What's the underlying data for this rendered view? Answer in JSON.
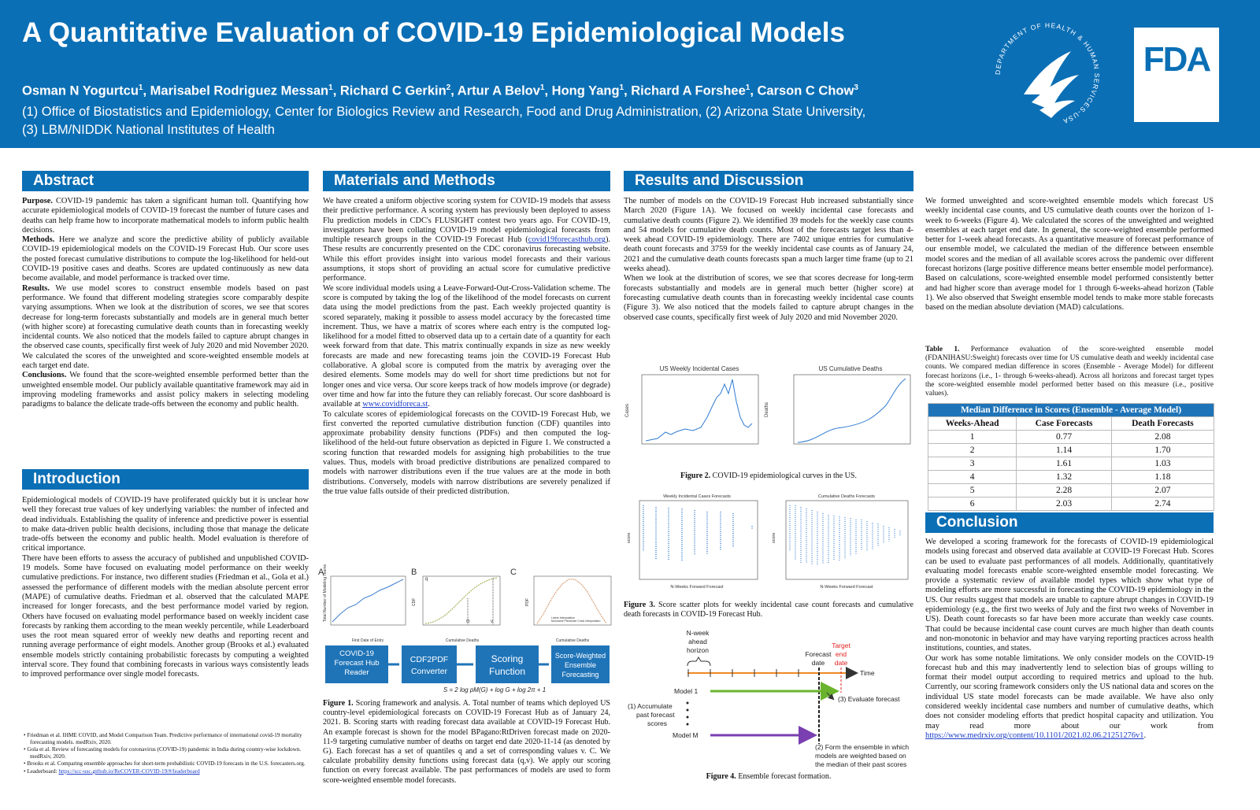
{
  "header": {
    "title": "A Quantitative Evaluation of COVID-19 Epidemiological Models",
    "authors": [
      {
        "name": "Osman N Yogurtcu",
        "sup": "1"
      },
      {
        "name": "Marisabel Rodriguez Messan",
        "sup": "1"
      },
      {
        "name": "Richard C Gerkin",
        "sup": "2"
      },
      {
        "name": "Artur A Belov",
        "sup": "1"
      },
      {
        "name": "Hong Yang",
        "sup": "1"
      },
      {
        "name": "Richard A Forshee",
        "sup": "1"
      },
      {
        "name": "Carson C Chow",
        "sup": "3"
      }
    ],
    "affiliations": [
      "(1) Office of Biostatistics and Epidemiology, Center for Biologics Review and Research, Food and Drug Administration, (2) Arizona State University,",
      "(3) LBM/NIDDK National Institutes of Health"
    ],
    "hhs_seal": "DEPARTMENT OF HEALTH & HUMAN SERVICES-USA",
    "fda": "FDA"
  },
  "abstract": {
    "heading": "Abstract",
    "paragraphs": [
      {
        "lead": "Purpose.",
        "text": "COVID-19 pandemic has taken a significant human toll. Quantifying how accurate epidemiological models of COVID-19 forecast the number of future cases and deaths can help frame how to incorporate mathematical models to inform public health decisions."
      },
      {
        "lead": "Methods.",
        "text": "Here we analyze and score the predictive ability of publicly available COVID-19 epidemiological models on the COVID-19 Forecast Hub. Our score uses the posted forecast cumulative distributions to compute the log-likelihood for held-out COVID-19 positive cases and deaths. Scores are updated continuously as new data become available, and model performance is tracked over time."
      },
      {
        "lead": "Results.",
        "text": "We use model scores to construct ensemble models based on past performance. We found that different modeling strategies score comparably despite varying assumptions. When we look at the distribution of scores, we see that scores decrease for long-term forecasts substantially and models are in general much better (with higher score) at forecasting cumulative death counts than in forecasting weekly incidental counts. We also noticed that the models failed to capture abrupt changes in the observed case counts, specifically first week of July 2020 and mid November 2020. We calculated the scores of the unweighted and score-weighted ensemble models at each target end date."
      },
      {
        "lead": "Conclusions.",
        "text": "We found that the score-weighted ensemble performed better than the unweighted ensemble model. Our publicly available quantitative framework may aid in improving modeling frameworks and assist policy makers in selecting modeling paradigms to balance the delicate trade-offs between the economy and public health."
      }
    ]
  },
  "introduction": {
    "heading": "Introduction",
    "paragraphs": [
      "Epidemiological models of COVID-19 have proliferated quickly but it is unclear how well they forecast true values of key underlying variables: the number of infected and dead individuals. Establishing the quality of inference and predictive power is essential to make data-driven public health decisions, including those that manage the delicate trade-offs between the economy and public health. Model evaluation is therefore of critical importance.",
      "There have been efforts to assess the accuracy of published and unpublished COVID-19 models. Some have focused on evaluating model performance on their weekly cumulative predictions. For instance, two different studies (Friedman et al., Gola et al.) assessed the performance of different models with the median absolute percent error (MAPE) of cumulative deaths. Friedman et al. observed that the calculated MAPE increased for longer forecasts, and the best performance model varied by region. Others have focused on evaluating model performance based on weekly incident case forecasts by ranking them according to the mean weekly percentile, while Leaderboard uses the root mean squared error of weekly new deaths and reporting recent and running average performance of eight models. Another group (Brooks et al.) evaluated ensemble models strictly containing probabilistic forecasts by computing a weighted interval score. They found that combining forecasts in various ways consistently leads to improved performance over single model forecasts."
    ],
    "references": [
      "Friedman et al. IHME COVID, and Model Comparison Team. Predictive performance of international covid-19 mortality forecasting models. medRxiv, 2020.",
      "Gola et al. Review of forecasting models for coronavirus (COVID-19) pandemic in India during country-wise lockdown. medRxiv, 2020.",
      "Brooks et al. Comparing ensemble approaches for short-term probabilistic COVID-19 forecasts in the U.S. forecasters.org."
    ],
    "leaderboard": {
      "label": "Leaderboard:",
      "link": "https://scc-usc.github.io/ReCOVER-COVID-19/#/leaderboard"
    }
  },
  "methods": {
    "heading": "Materials and Methods",
    "p1": {
      "text": "We have created a uniform objective scoring system for COVID-19 models that assess their predictive performance. A scoring system has previously been deployed to assess Flu prediction models in CDC's FLUSIGHT contest two years ago. For COVID-19, investigators have been collating COVID-19 model epidemiological forecasts from multiple research groups in the COVID-19 Forecast Hub (",
      "link": "covid19forecasthub.org",
      "after": "). These results are concurrently presented on the CDC coronavirus forecasting website. While this effort provides insight into various model forecasts and their various assumptions, it stops short of providing an actual score for cumulative predictive performance."
    },
    "p2": {
      "text": "We score individual models using a Leave-Forward-Out-Cross-Validation scheme. The score is computed by taking the log of the likelihood of the model forecasts on current data using the model predictions from the past. Each weekly projected quantity is scored separately, making it possible to assess model accuracy by the forecasted time increment. Thus, we have a matrix of scores where each entry is the computed log-likelihood for a model fitted to observed data up to a certain date of a quantity for each week forward from that date. This matrix continually expands in size as new weekly forecasts are made and new forecasting teams join the COVID-19 Forecast Hub collaborative. A global score is computed from the matrix by averaging over the desired elements. Some models may do well for short time predictions but not for longer ones and vice versa. Our score keeps track of how models improve (or degrade) over time and how far into the future they can reliably forecast. Our score dashboard is available at",
      "link": "www.covidforeca.st",
      "after": "."
    },
    "p3": "To calculate scores of epidemiological forecasts on the COVID-19 Forecast Hub, we first converted the reported cumulative distribution function (CDF) quantiles into approximate probability density functions (PDFs) and then computed the log-likelihood of the held-out future observation as depicted in Figure 1. We constructed a scoring function that rewarded models for assigning high probabilities to the true values. Thus, models with broad predictive distributions are penalized compared to models with narrower distributions even if the true values are at the mode in both distributions. Conversely, models with narrow distributions are severely penalized if the true value falls outside of their predicted distribution."
  },
  "figure1": {
    "panels": [
      "A",
      "B",
      "C"
    ],
    "a_ylabel": "Total Number of Modeling Teams",
    "a_xlabel": "First Date of Entry",
    "b_ylabel": "CDF",
    "b_xlabel": "Cumulative Deaths",
    "b_marks": [
      "q",
      "G",
      "v"
    ],
    "c_ylabel": "PDF",
    "c_xlabel": "Cumulative Deaths",
    "c_legend": [
      "Linear Interpolation",
      "Monotone Piecewise Cubic Interpolation"
    ],
    "boxes": [
      [
        "COVID-19",
        "Forecast Hub",
        "Reader"
      ],
      [
        "CDF2PDF",
        "Converter"
      ],
      [
        "Scoring",
        "Function"
      ],
      [
        "Score-Weighted",
        "Ensemble",
        "Forecasting"
      ]
    ],
    "formula": "S = 2 log pM(G) + log G + log 2π + 1",
    "caption_lead": "Figure 1.",
    "caption": "Scoring framework and analysis. A. Total number of teams which deployed US country-level epidemiological forecasts on COVID-19 Forecast Hub as of January 24, 2021. B. Scoring starts with reading forecast data available at COVID-19 Forecast Hub. An example forecast is shown for the model BPagano:RtDriven forecast made on 2020-11-9 targeting cumulative number of deaths on target end date 2020-11-14 (as denoted by G). Each forecast has a set of quantiles q and a set of corresponding values v. C. We calculate probability density functions using forecast data (q,v). We apply our scoring function on every forecast available. The past performances of models are used to form score-weighted ensemble model forecasts."
  },
  "results": {
    "heading": "Results and Discussion",
    "paragraphs": [
      "The number of  models on the COVID-19 Forecast Hub increased substantially since March 2020 (Figure 1A). We focused on weekly incidental case forecasts and cumulative death counts (Figure 2). We identified 39 models for the weekly case counts and 54 models for cumulative death counts. Most of the forecasts target less than 4-week ahead COVID-19 epidemiology. There are 7402 unique entries for cumulative death count forecasts and 3759 for the weekly incidental case counts as of January 24, 2021 and the cumulative death counts forecasts span a much larger time frame (up to 21 weeks ahead).",
      "When we look at the distribution of scores, we see that scores decrease for long-term forecasts substantially and models are in general much better (higher score) at forecasting cumulative death counts than in forecasting weekly incidental case counts (Figure 3). We also noticed that the models failed to capture abrupt changes in the observed case counts, specifically first week of July 2020 and mid November 2020.",
      "We formed unweighted and score-weighted ensemble models which forecast US weekly incidental case counts, and US cumulative death counts over the horizon of 1-week to 6-weeks (Figure 4). We calculated the scores of the unweighted and weighted ensembles at each target end date. In general, the score-weighted ensemble performed better for 1-week ahead forecasts. As a quantitative measure of forecast performance of our ensemble model, we calculated the median of the difference between ensemble model scores and the median of all available scores across the pandemic over different forecast horizons (large positive difference means better ensemble model performance). Based on calculations, score-weighted ensemble model performed consistently better and had higher score than average model for 1 through 6-weeks-ahead horizon (Table 1). We also observed that Sweight ensemble model tends to make more stable forecasts based on the median absolute deviation (MAD) calculations."
    ],
    "figure2": {
      "titles": [
        "US Weekly Incidental Cases",
        "US Cumulative Deaths"
      ],
      "ylabels": [
        "Cases",
        "Deaths"
      ],
      "caption_lead": "Figure 2.",
      "caption": "COVID-19 epidemiological curves in the US."
    },
    "figure3": {
      "titles": [
        "Weekly Incidental Cases Forecasts",
        "Cumulative Deaths Forecasts"
      ],
      "xlabel": "N-Weeks Forward Forecast",
      "ylabel": "score",
      "caption_lead": "Figure 3.",
      "caption": "Score scatter plots for weekly incidental case count forecasts and cumulative death forecasts in COVID-19 Forecast Hub."
    },
    "figure4": {
      "horizon": [
        "N-week",
        "ahead",
        "horizon"
      ],
      "forecast_date": [
        "Forecast",
        "date"
      ],
      "target": [
        "Target",
        "end",
        "date"
      ],
      "time": "Time",
      "model1": "Model 1",
      "modelm": "Model M",
      "step1": [
        "(1) Accumulate",
        "past forecast",
        "scores"
      ],
      "step3": "(3) Evaluate forecast",
      "step2": [
        "(2) Form the ensemble in which",
        "models are weighted based on",
        "the median of their past scores"
      ],
      "caption_lead": "Figure 4.",
      "caption": "Ensemble forecast formation."
    },
    "table": {
      "caption_lead": "Table 1.",
      "caption": "Performance evaluation of the score-weighted ensemble model (FDANIHASU:Sweight) forecasts over time for US cumulative death and weekly incidental case counts. We compared median difference in scores (Ensemble - Average Model) for different forecast horizons (i.e., 1- through 6-weeks-ahead). Across all horizons and forecast target types the score-weighted ensemble model performed better based on this measure (i.e., positive values).",
      "title": "Median Difference in Scores (Ensemble - Average Model)",
      "columns": [
        "Weeks-Ahead",
        "Case Forecasts",
        "Death Forecasts"
      ],
      "rows": [
        [
          "1",
          "0.77",
          "2.08"
        ],
        [
          "2",
          "1.14",
          "1.70"
        ],
        [
          "3",
          "1.61",
          "1.03"
        ],
        [
          "4",
          "1.32",
          "1.18"
        ],
        [
          "5",
          "2.28",
          "2.07"
        ],
        [
          "6",
          "2.03",
          "2.74"
        ]
      ]
    }
  },
  "conclusion": {
    "heading": "Conclusion",
    "p1": "We developed a scoring framework for the forecasts of COVID-19 epidemiological models using forecast and observed data available at COVID-19 Forecast Hub. Scores can be used to evaluate past performances of all models. Additionally, quantitatively evaluating model forecasts enable score-weighted ensemble model forecasting. We provide a systematic review of available model types which show what type of modeling efforts are more successful in forecasting the COVID-19 epidemiology in the US. Our results suggest that models are unable to capture abrupt changes in COVID-19 epidemiology (e.g., the first two weeks of July and the first two weeks of November in US). Death count forecasts so far have been more accurate than weekly case counts. That could be because incidental case count curves are much higher than death counts and non-monotonic in behavior and may have varying reporting practices across health institutions, counties, and states.",
    "p2": {
      "text": "Our work has some notable limitations. We only consider models on the COVID-19 forecast hub and this may inadvertently lend to selection bias of groups willing to format their model output according to required metrics and upload to the hub. Currently, our scoring framework considers only the US national data and scores on the individual US state model forecasts can be made available. We have also only considered weekly incidental case numbers and number of cumulative deaths, which does not consider modeling efforts that predict hospital capacity and utilization. You may read more about our work from",
      "link": "https://www.medrxiv.org/content/10.1101/2021.02.06.21251276v1",
      "after": "."
    }
  }
}
